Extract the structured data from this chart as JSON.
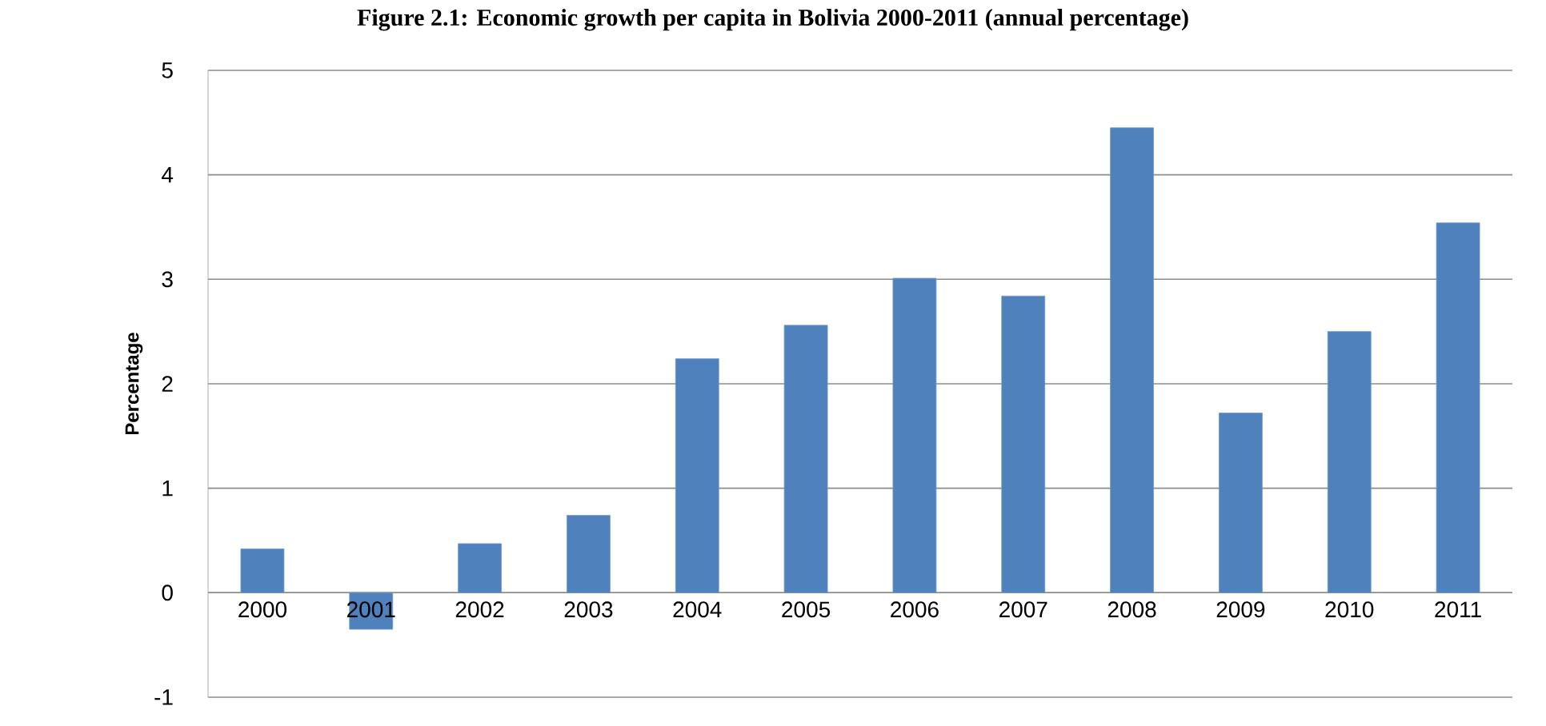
{
  "chart_data": {
    "type": "bar",
    "title": "Figure 2.1: Economic growth per capita in Bolivia 2000-2011 (annual percentage)",
    "ylabel": "Percentage",
    "categories": [
      "2000",
      "2001",
      "2002",
      "2003",
      "2004",
      "2005",
      "2006",
      "2007",
      "2008",
      "2009",
      "2010",
      "2011"
    ],
    "values": [
      0.42,
      -0.35,
      0.47,
      0.74,
      2.24,
      2.56,
      3.01,
      2.84,
      4.45,
      1.72,
      2.5,
      3.54
    ],
    "color": "#4f81bd",
    "ylim": [
      -1,
      5
    ],
    "yticks": [
      -1,
      0,
      1,
      2,
      3,
      4,
      5
    ],
    "grid": "y"
  }
}
